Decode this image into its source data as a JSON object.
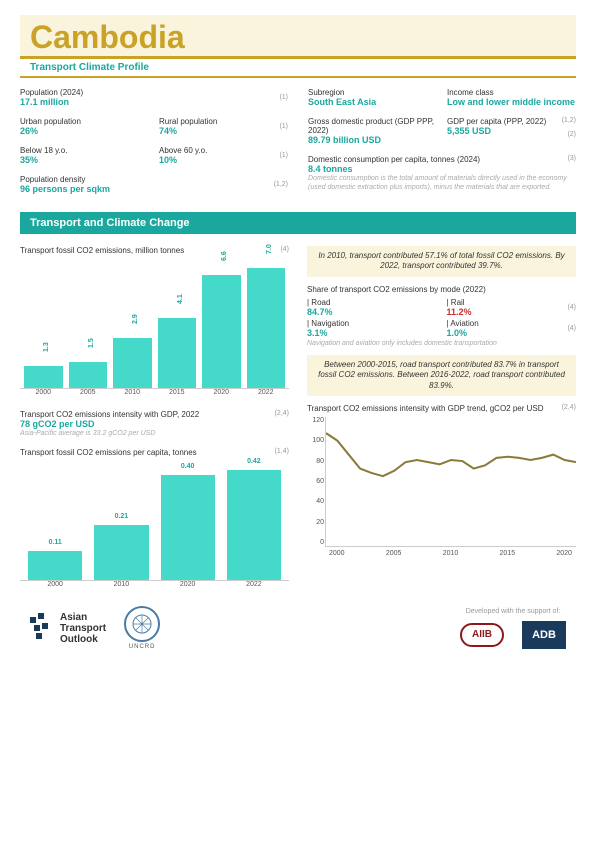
{
  "header": {
    "country": "Cambodia",
    "subtitle": "Transport Climate Profile"
  },
  "stats_left": {
    "row1": [
      {
        "label": "Population (2024)",
        "value": "17.1 million",
        "ref": "(1)"
      }
    ],
    "row2": [
      {
        "label": "Urban population",
        "value": "26%"
      },
      {
        "label": "Rural population",
        "value": "74%",
        "ref": "(1)"
      }
    ],
    "row3": [
      {
        "label": "Below 18 y.o.",
        "value": "35%"
      },
      {
        "label": "Above 60 y.o.",
        "value": "10%",
        "ref": "(1)"
      }
    ],
    "row4": [
      {
        "label": "Population density",
        "value": "96 persons per sqkm",
        "ref": "(1,2)"
      }
    ]
  },
  "stats_right": {
    "row1": [
      {
        "label": "Subregion",
        "value": "South East Asia"
      },
      {
        "label": "Income class",
        "value": "Low and lower middle income"
      }
    ],
    "row2": [
      {
        "label": "Gross domestic product (GDP PPP, 2022)",
        "value": "89.79 billion USD"
      },
      {
        "label": "GDP per capita (PPP, 2022)",
        "value": "5,355  USD",
        "ref": "(1,2)",
        "ref2": "(2)"
      }
    ],
    "row3": {
      "label": "Domestic consumption per capita, tonnes (2024)",
      "value": "8.4 tonnes",
      "ref": "(3)",
      "note": "Domestic consumption is the total amount of materials directly used in the economy (used domestic extraction plus imports), minus the materials that are exported."
    }
  },
  "section_title": "Transport and Climate Change",
  "chart1": {
    "title": "Transport fossil CO2 emissions, million tonnes",
    "ref": "(4)",
    "categories": [
      "2000",
      "2005",
      "2010",
      "2015",
      "2020",
      "2022"
    ],
    "values": [
      1.3,
      1.5,
      2.9,
      4.1,
      6.6,
      7.0
    ],
    "max": 7.0,
    "bar_color": "#44d9c9"
  },
  "metric1": {
    "label": "Transport CO2 emissions intensity with GDP, 2022",
    "value": "78 gCO2 per USD",
    "ref": "(2,4)",
    "note": "Asia-Pacific average is 33.2 gCO2 per USD"
  },
  "chart2": {
    "title": "Transport fossil CO2 emissions per capita, tonnes",
    "ref": "(1,4)",
    "categories": [
      "2000",
      "2010",
      "2020",
      "2022"
    ],
    "values": [
      0.11,
      0.21,
      0.4,
      0.42
    ],
    "max": 0.42,
    "bar_color": "#44d9c9"
  },
  "highlight1": "In 2010, transport contributed 57.1% of total fossil CO2 emissions. By 2022, transport contributed 39.7%.",
  "shares": {
    "title": "Share of transport CO2 emissions by mode (2022)",
    "row1": [
      {
        "label": "| Road",
        "value": "84.7%"
      },
      {
        "label": "| Rail",
        "value": "11.2%",
        "red": true,
        "ref": "(4)"
      }
    ],
    "row2": [
      {
        "label": "| Navigation",
        "value": "3.1%"
      },
      {
        "label": "| Aviation",
        "value": "1.0%",
        "ref": "(4)"
      }
    ],
    "note": "Navigation and aviation only includes domestic transportation"
  },
  "highlight2": "Between 2000-2015, road transport contributed 83.7% in transport fossil CO2 emissions. Between 2016-2022, road transport contributed 83.9%.",
  "chart3": {
    "title": "Transport CO2 emissions intensity with GDP trend, gCO2 per USD",
    "ref": "(2,4)",
    "ylim": [
      0,
      120
    ],
    "ytick": [
      0,
      20,
      40,
      60,
      80,
      100,
      120
    ],
    "xlim": [
      2000,
      2022
    ],
    "xtick": [
      "2000",
      "2005",
      "2010",
      "2015",
      "2020"
    ],
    "line_color": "#8a7a3a",
    "points": [
      [
        2000,
        105
      ],
      [
        2001,
        98
      ],
      [
        2002,
        85
      ],
      [
        2003,
        72
      ],
      [
        2004,
        68
      ],
      [
        2005,
        65
      ],
      [
        2006,
        70
      ],
      [
        2007,
        78
      ],
      [
        2008,
        80
      ],
      [
        2009,
        78
      ],
      [
        2010,
        76
      ],
      [
        2011,
        80
      ],
      [
        2012,
        79
      ],
      [
        2013,
        72
      ],
      [
        2014,
        75
      ],
      [
        2015,
        82
      ],
      [
        2016,
        83
      ],
      [
        2017,
        82
      ],
      [
        2018,
        80
      ],
      [
        2019,
        82
      ],
      [
        2020,
        85
      ],
      [
        2021,
        80
      ],
      [
        2022,
        78
      ]
    ]
  },
  "footer": {
    "ato": "Asian\nTransport\nOutlook",
    "uncrd": "UNCRD",
    "support": "Developed with the support of:",
    "aiib": "AIIB",
    "adb": "ADB"
  }
}
